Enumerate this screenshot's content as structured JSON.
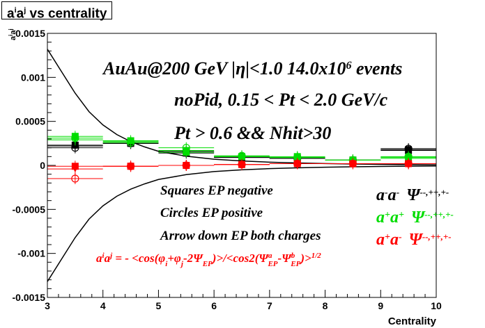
{
  "chart_data": {
    "type": "scatter",
    "title": "aⁱaʲ vs centrality",
    "ylabel": "aⁱaʲ",
    "xlabel": "Centrality",
    "xlim": [
      3,
      10
    ],
    "ylim": [
      -0.0015,
      0.0015
    ],
    "x_ticks": [
      "3",
      "4",
      "5",
      "6",
      "7",
      "8",
      "9",
      "10"
    ],
    "y_ticks": [
      "-0.0015",
      "-0.001",
      "-0.0005",
      "0",
      "0.0005",
      "0.001",
      "0.0015"
    ],
    "grid": false,
    "annotations": {
      "line1": "AuAu@200 GeV |η|<1.0 14.0x10⁶ events",
      "line2": "noPid, 0.15 < Pt < 2.0 GeV/c",
      "line3": "Pt > 0.6 && Nhit>30",
      "note1": "Squares EP negative",
      "note2": "Circles EP positive",
      "note3": "Arrow down EP both charges",
      "formula": "aⁱaʲ = - <cos(φᵢ+φⱼ-2Ψ_EP)>/<cos2(Ψᵃ_EP-Ψᵇ_EP)>^1/2"
    },
    "legend": [
      {
        "label": "a⁻a⁻ Ψ⁻⁻,⁺⁺,⁺⁻",
        "color": "#000000"
      },
      {
        "label": "a⁺a⁺ Ψ⁻⁻,⁺⁺,⁺⁻",
        "color": "#00dd00"
      },
      {
        "label": "a⁺a⁻ Ψ⁻⁻,⁺⁺,⁺⁻",
        "color": "#ff0000"
      }
    ],
    "series": [
      {
        "color": "#000000",
        "x": [
          3.5,
          4.5,
          5.5,
          6.5,
          7.5,
          8.5,
          9.5
        ],
        "squares": [
          0.00023,
          0.00025,
          0.00014,
          9e-05,
          8e-05,
          6e-05,
          0.00017
        ],
        "circles": [
          0.0002,
          0.00025,
          0.00016,
          0.0001,
          8e-05,
          6e-05,
          0.00019
        ],
        "arrows": [
          0.00022,
          0.00026,
          0.00015,
          9e-05,
          8e-05,
          6e-05,
          0.00018
        ]
      },
      {
        "color": "#00dd00",
        "x": [
          3.5,
          4.5,
          5.5,
          6.5,
          7.5,
          8.5,
          9.5
        ],
        "squares": [
          0.00033,
          0.00028,
          0.00015,
          0.0001,
          0.0001,
          6e-05,
          8e-05
        ],
        "circles": [
          0.00031,
          0.00026,
          0.0002,
          0.00011,
          9e-05,
          6e-05,
          0.0001
        ],
        "arrows": [
          0.00029,
          0.00027,
          0.00017,
          0.0001,
          9e-05,
          6e-05,
          9e-05
        ]
      },
      {
        "color": "#ff0000",
        "x": [
          3.5,
          4.5,
          5.5,
          6.5,
          7.5,
          8.5,
          9.5
        ],
        "squares": [
          -1e-05,
          -1e-05,
          0.0,
          1e-05,
          2e-05,
          2e-05,
          2e-05
        ],
        "circles": [
          -0.00015,
          -1e-05,
          0.0,
          1e-05,
          2e-05,
          2e-05,
          2e-05
        ],
        "arrows": [
          -4e-05,
          -1e-05,
          0.0,
          1e-05,
          2e-05,
          2e-05,
          2e-05
        ]
      }
    ],
    "curves": {
      "upper_x": [
        3.0,
        3.25,
        3.5,
        3.75,
        4.0,
        4.25,
        4.5,
        4.75,
        5.0,
        5.5,
        6.0,
        6.5,
        7.0,
        7.5,
        8.0,
        8.5,
        9.0,
        9.5,
        10.0
      ],
      "upper_y": [
        0.00132,
        0.00107,
        0.00082,
        0.00061,
        0.00046,
        0.00035,
        0.00027,
        0.00021,
        0.00016,
        0.000105,
        7e-05,
        5e-05,
        3.7e-05,
        2.8e-05,
        2.1e-05,
        1.6e-05,
        1.2e-05,
        9e-06,
        7e-06
      ],
      "lower_x": [
        3.0,
        3.25,
        3.5,
        3.75,
        4.0,
        4.25,
        4.5,
        4.75,
        5.0,
        5.5,
        6.0,
        6.5,
        7.0,
        7.5,
        8.0,
        8.5,
        9.0,
        9.5,
        10.0
      ],
      "lower_y": [
        -0.00132,
        -0.00107,
        -0.00082,
        -0.00061,
        -0.00046,
        -0.00035,
        -0.00027,
        -0.00021,
        -0.00016,
        -0.000105,
        -7e-05,
        -5e-05,
        -3.7e-05,
        -2.8e-05,
        -2.1e-05,
        -1.6e-05,
        -1.2e-05,
        -9e-06,
        -7e-06
      ]
    }
  }
}
